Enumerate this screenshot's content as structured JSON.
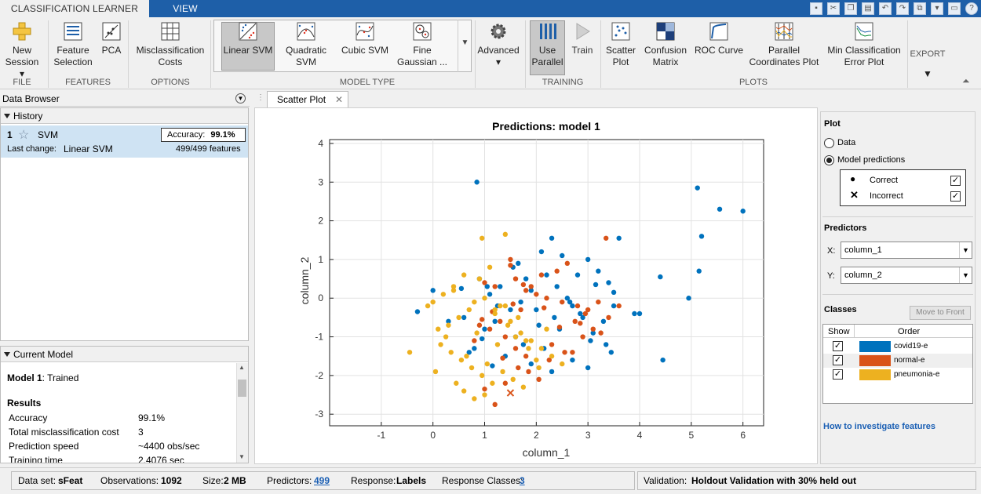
{
  "tabs": {
    "classification_learner": "CLASSIFICATION LEARNER",
    "view": "VIEW"
  },
  "ribbon": {
    "new_session": {
      "line1": "New",
      "line2": "Session ▾"
    },
    "feature_selection": {
      "line1": "Feature",
      "line2": "Selection"
    },
    "pca": "PCA",
    "misclassification_costs": {
      "line1": "Misclassification",
      "line2": "Costs"
    },
    "linear_svm": "Linear SVM",
    "quadratic_svm": {
      "line1": "Quadratic",
      "line2": "SVM"
    },
    "cubic_svm": "Cubic SVM",
    "fine_gaussian": {
      "line1": "Fine",
      "line2": "Gaussian ..."
    },
    "advanced": "Advanced",
    "use_parallel": {
      "line1": "Use",
      "line2": "Parallel"
    },
    "train": "Train",
    "scatter_plot": {
      "line1": "Scatter",
      "line2": "Plot"
    },
    "confusion_matrix": {
      "line1": "Confusion",
      "line2": "Matrix"
    },
    "roc_curve": "ROC Curve",
    "parallel_coords": {
      "line1": "Parallel",
      "line2": "Coordinates Plot"
    },
    "min_class_error": {
      "line1": "Min Classification",
      "line2": "Error Plot"
    },
    "export": "EXPORT",
    "sections": {
      "file": "FILE",
      "features": "FEATURES",
      "options": "OPTIONS",
      "model_type": "MODEL TYPE",
      "training": "TRAINING",
      "plots": "PLOTS"
    }
  },
  "data_browser": {
    "title": "Data Browser"
  },
  "history": {
    "title": "History",
    "item": {
      "index": "1",
      "name": "SVM",
      "accuracy_label": "Accuracy:",
      "accuracy_value": "99.1%",
      "last_change_label": "Last change:",
      "last_change_value": "Linear SVM",
      "features": "499/499 features"
    }
  },
  "current_model": {
    "title": "Current Model",
    "model_name": "Model 1",
    "model_status": ": Trained",
    "results_title": "Results",
    "results": [
      {
        "label": "Accuracy",
        "value": "99.1%"
      },
      {
        "label": "Total misclassification cost",
        "value": "3"
      },
      {
        "label": "Prediction speed",
        "value": "~4400 obs/sec"
      },
      {
        "label": "Training time",
        "value": "2.4076 sec"
      }
    ]
  },
  "doc_tab": {
    "label": "Scatter Plot"
  },
  "side": {
    "plot_label": "Plot",
    "data_radio": "Data",
    "model_pred_radio": "Model predictions",
    "correct": "Correct",
    "incorrect": "Incorrect",
    "predictors_label": "Predictors",
    "x_label": "X:",
    "x_value": "column_1",
    "y_label": "Y:",
    "y_value": "column_2",
    "classes_label": "Classes",
    "move_to_front": "Move to Front",
    "col_show": "Show",
    "col_order": "Order",
    "classes": [
      {
        "name": "covid19-e",
        "color": "#0072bd"
      },
      {
        "name": "normal-e",
        "color": "#d95319"
      },
      {
        "name": "pneumonia-e",
        "color": "#edb120"
      }
    ],
    "help_link": "How to investigate features"
  },
  "status": {
    "dataset_label": "Data set:",
    "dataset_value": "sFeat",
    "obs_label": "Observations:",
    "obs_value": "1092",
    "size_label": "Size:",
    "size_value": "2 MB",
    "predictors_label": "Predictors:",
    "predictors_value": "499",
    "response_label": "Response:",
    "response_value": "Labels",
    "resp_classes_label": "Response Classes:",
    "resp_classes_value": "3",
    "validation_label": "Validation:",
    "validation_value": "Holdout Validation with 30% held out"
  },
  "chart_data": {
    "type": "scatter",
    "title": "Predictions: model 1",
    "xlabel": "column_1",
    "ylabel": "column_2",
    "xlim": [
      -2,
      6.4
    ],
    "ylim": [
      -3.3,
      4.1
    ],
    "xticks": [
      -1,
      0,
      1,
      2,
      3,
      4,
      5,
      6
    ],
    "yticks": [
      -3,
      -2,
      -1,
      0,
      1,
      2,
      3,
      4
    ],
    "grid": true,
    "series": [
      {
        "name": "covid19-e",
        "color": "#0072bd",
        "marker": "dot",
        "x": [
          0.85,
          5.12,
          5.55,
          6.0,
          5.2,
          5.15,
          4.95,
          4.4,
          4.45,
          3.6,
          3.9,
          4.0,
          2.3,
          2.5,
          3.0,
          2.8,
          3.2,
          3.4,
          3.5,
          3.3,
          2.1,
          2.2,
          2.4,
          1.9,
          1.7,
          1.5,
          1.2,
          1.0,
          0.8,
          0.7,
          0.0,
          -0.3,
          1.1,
          1.3,
          1.8,
          2.6,
          2.7,
          2.9,
          3.1,
          3.35,
          2.05,
          1.6,
          1.4,
          1.9,
          2.3,
          2.7,
          3.0,
          3.45,
          0.9,
          1.05,
          1.25,
          0.6,
          1.75,
          2.15,
          2.45,
          2.85,
          3.15,
          3.5,
          1.55,
          1.65,
          2.0,
          2.35,
          2.65,
          3.05,
          0.55,
          0.3,
          0.95,
          1.15
        ],
        "y": [
          3.0,
          2.85,
          2.3,
          2.25,
          1.6,
          0.7,
          0.0,
          0.55,
          -1.6,
          1.55,
          -0.4,
          -0.4,
          1.55,
          1.1,
          1.0,
          0.6,
          0.7,
          0.4,
          -0.2,
          -0.6,
          1.2,
          0.6,
          0.3,
          0.2,
          -0.1,
          -0.3,
          -0.6,
          -0.8,
          -1.3,
          -1.4,
          0.2,
          -0.35,
          0.1,
          0.3,
          0.5,
          0.0,
          -0.2,
          -0.5,
          -0.9,
          -1.2,
          -0.7,
          -1.0,
          -1.5,
          -1.7,
          -1.9,
          -1.6,
          -1.8,
          -1.4,
          0.5,
          0.3,
          -0.2,
          -0.5,
          -1.2,
          -1.3,
          -0.8,
          -0.4,
          0.35,
          0.15,
          0.8,
          0.9,
          -0.3,
          -0.5,
          -0.1,
          -1.1,
          0.25,
          -0.6,
          -1.05,
          -1.75
        ]
      },
      {
        "name": "normal-e",
        "color": "#d95319",
        "marker": "dot",
        "x": [
          3.35,
          1.5,
          1.2,
          1.0,
          1.6,
          1.8,
          2.0,
          2.2,
          2.5,
          2.8,
          3.0,
          3.2,
          3.4,
          3.6,
          2.6,
          2.4,
          2.1,
          1.9,
          1.7,
          1.3,
          1.1,
          0.9,
          0.8,
          1.4,
          1.6,
          1.8,
          2.3,
          2.7,
          2.9,
          3.1,
          1.0,
          1.2,
          1.4,
          1.65,
          1.85,
          2.05,
          2.25,
          2.55,
          2.75,
          2.95,
          3.25,
          1.5,
          1.75,
          1.15,
          0.95,
          1.35,
          1.55,
          2.15,
          2.45,
          2.85
        ],
        "y": [
          1.55,
          1.0,
          0.3,
          0.4,
          0.5,
          0.2,
          0.1,
          0.0,
          -0.1,
          -0.2,
          -0.3,
          -0.1,
          -0.5,
          -0.2,
          0.9,
          0.7,
          0.6,
          0.3,
          -0.3,
          -0.6,
          -0.8,
          -0.7,
          -1.1,
          -1.0,
          -1.3,
          -1.5,
          -1.2,
          -1.4,
          -1.0,
          -0.8,
          -2.35,
          -2.75,
          -2.2,
          -1.8,
          -1.9,
          -2.1,
          -1.6,
          -1.4,
          -0.6,
          -0.4,
          -0.9,
          0.85,
          0.35,
          -0.35,
          -0.55,
          -1.55,
          -0.15,
          -0.25,
          -0.75,
          -0.65
        ]
      },
      {
        "name": "pneumonia-e",
        "color": "#edb120",
        "marker": "dot",
        "x": [
          0.95,
          1.4,
          0.9,
          0.6,
          0.4,
          0.2,
          0.0,
          -0.1,
          0.1,
          0.3,
          0.5,
          0.7,
          0.8,
          1.0,
          1.2,
          1.3,
          1.5,
          1.7,
          1.9,
          2.1,
          2.3,
          2.5,
          0.15,
          0.35,
          0.55,
          0.75,
          0.95,
          1.15,
          1.35,
          1.55,
          1.75,
          -0.45,
          0.05,
          0.25,
          0.45,
          0.65,
          0.85,
          1.05,
          1.25,
          1.45,
          1.65,
          1.85,
          2.05,
          0.6,
          0.8,
          1.0,
          1.2,
          1.4,
          1.6,
          1.8,
          2.0,
          2.2,
          0.4,
          1.1
        ],
        "y": [
          1.55,
          1.65,
          0.5,
          0.6,
          0.2,
          0.1,
          -0.1,
          -0.2,
          -0.8,
          -0.7,
          -0.5,
          -0.3,
          -0.1,
          0.0,
          -0.4,
          -0.2,
          -0.6,
          -0.9,
          -1.1,
          -1.3,
          -1.5,
          -1.7,
          -1.2,
          -1.4,
          -1.6,
          -1.8,
          -2.0,
          -2.2,
          -1.9,
          -2.1,
          -2.3,
          -1.4,
          -1.9,
          -1.0,
          -2.2,
          -1.5,
          -0.9,
          -1.7,
          -1.2,
          -0.7,
          -0.5,
          -1.3,
          -1.8,
          -2.4,
          -2.6,
          -2.5,
          -0.3,
          -0.2,
          -1.0,
          -1.1,
          -1.6,
          -0.8,
          0.3,
          0.8
        ]
      },
      {
        "name": "incorrect",
        "color": "#d95319",
        "marker": "x",
        "x": [
          1.5
        ],
        "y": [
          -2.45
        ]
      }
    ]
  }
}
